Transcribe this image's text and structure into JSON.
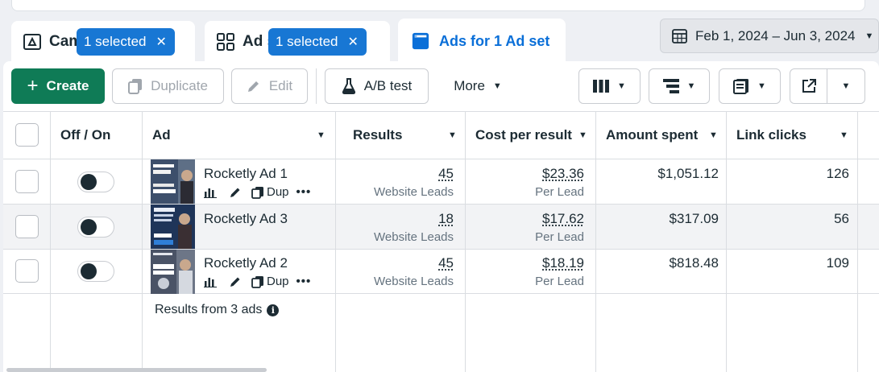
{
  "tabs": [
    {
      "label": "Campaigns",
      "badge": "1 selected"
    },
    {
      "label": "Ad sets",
      "badge": "1 selected"
    },
    {
      "label": "Ads for 1 Ad set"
    }
  ],
  "date_range": "Feb 1, 2024 – Jun 3, 2024",
  "toolbar": {
    "create": "Create",
    "duplicate": "Duplicate",
    "edit": "Edit",
    "ab_test": "A/B test",
    "more": "More"
  },
  "columns": {
    "toggle": "Off / On",
    "ad": "Ad",
    "results": "Results",
    "cost_per_result": "Cost per result",
    "amount_spent": "Amount spent",
    "link_clicks": "Link clicks"
  },
  "rows": [
    {
      "name": "Rocketly Ad 1",
      "action": "Dup",
      "results": "45",
      "results_type": "Website Leads",
      "cost": "$23.36",
      "cost_unit": "Per Lead",
      "spent": "$1,051.12",
      "clicks": "126",
      "enabled": false
    },
    {
      "name": "Rocketly Ad 3",
      "action": "",
      "results": "18",
      "results_type": "Website Leads",
      "cost": "$17.62",
      "cost_unit": "Per Lead",
      "spent": "$317.09",
      "clicks": "56",
      "enabled": false
    },
    {
      "name": "Rocketly Ad 2",
      "action": "Dup",
      "results": "45",
      "results_type": "Website Leads",
      "cost": "$18.19",
      "cost_unit": "Per Lead",
      "spent": "$818.48",
      "clicks": "109",
      "enabled": false
    }
  ],
  "footer": {
    "summary": "Results from 3 ads"
  },
  "colors": {
    "accent": "#1877d4",
    "create": "#0f7b56",
    "tab_active": "#0a6fd8",
    "muted": "#65737f"
  }
}
